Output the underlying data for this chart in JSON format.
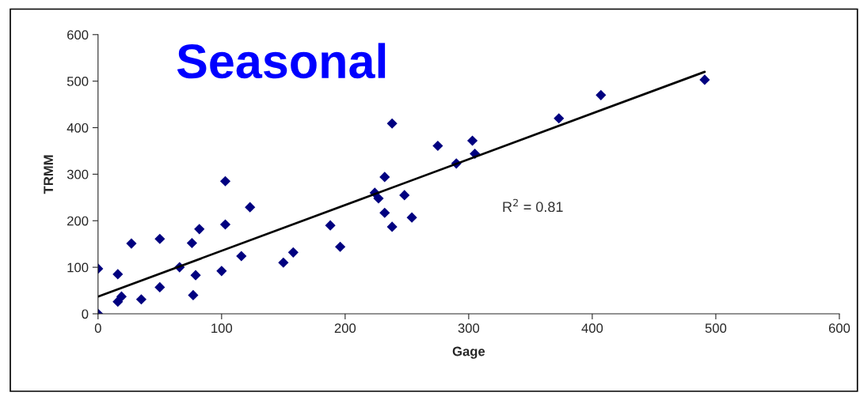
{
  "chart_data": {
    "type": "scatter",
    "title": "Seasonal",
    "xlabel": "Gage",
    "ylabel": "TRMM",
    "series": [
      {
        "color": "#000080",
        "marker": "diamond",
        "x": [
          0,
          0,
          16,
          16,
          19,
          27,
          35,
          50,
          50,
          66,
          76,
          79,
          77,
          82,
          100,
          103,
          103,
          116,
          123,
          150,
          158,
          188,
          196,
          224,
          227,
          232,
          232,
          238,
          238,
          248,
          254,
          275,
          290,
          303,
          305,
          373,
          407,
          491
        ],
        "values": [
          0,
          97,
          85,
          26,
          37,
          151,
          31,
          161,
          57,
          100,
          152,
          83,
          40,
          182,
          92,
          285,
          192,
          124,
          229,
          110,
          132,
          190,
          144,
          260,
          248,
          294,
          217,
          409,
          187,
          255,
          207,
          361,
          323,
          372,
          344,
          420,
          470,
          503
        ]
      },
      {
        "type": "line",
        "color": "#000000",
        "marker": "none",
        "line_style": "solid",
        "x": [
          0,
          491
        ],
        "values": [
          37,
          520
        ]
      }
    ],
    "annotations": [
      "R$^{2}$ = 0.81"
    ],
    "xlim": [
      0,
      600
    ],
    "ylim": [
      0,
      600
    ],
    "xticks": [
      0,
      100,
      200,
      300,
      400,
      500,
      600
    ],
    "yticks": [
      0,
      100,
      200,
      300,
      400,
      500,
      600
    ],
    "grid": false,
    "legend": false
  }
}
